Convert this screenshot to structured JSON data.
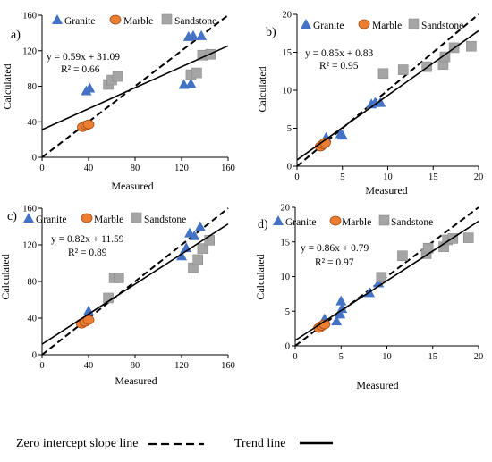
{
  "figure": {
    "caption_zero_intercept": "Zero intercept slope line",
    "caption_trend": "Trend line"
  },
  "legend": [
    "Granite",
    "Marble",
    "Sandstone"
  ],
  "colors": {
    "granite": "#4472c4",
    "marble": "#ed7d31",
    "marble_stroke": "#9c4a14",
    "sandstone": "#a5a5a5",
    "line": "#000000"
  },
  "chart_data": [
    {
      "type": "scatter",
      "panel_label": "a)",
      "xlabel": "Measured",
      "ylabel": "Calculated",
      "xlim": [
        0,
        160
      ],
      "ylim": [
        0,
        160
      ],
      "xticks": [
        0,
        40,
        80,
        120,
        160
      ],
      "yticks": [
        0,
        40,
        80,
        120,
        160
      ],
      "equation": "y = 0.59x + 31.09",
      "r2": "R² = 0.66",
      "trend": {
        "slope": 0.59,
        "intercept": 31.09
      },
      "zero_intercept_line": {
        "slope": 1
      },
      "series": [
        {
          "name": "Granite",
          "points": [
            [
              38,
              75
            ],
            [
              41,
              78
            ],
            [
              122,
              82
            ],
            [
              128,
              83
            ],
            [
              126,
              136
            ],
            [
              130,
              137
            ],
            [
              137,
              137
            ]
          ]
        },
        {
          "name": "Marble",
          "points": [
            [
              35,
              34
            ],
            [
              38,
              36
            ],
            [
              40,
              37
            ]
          ]
        },
        {
          "name": "Sandstone",
          "points": [
            [
              57,
              82
            ],
            [
              60,
              87
            ],
            [
              65,
              91
            ],
            [
              128,
              93
            ],
            [
              133,
              95
            ],
            [
              138,
              115
            ],
            [
              145,
              116
            ]
          ]
        }
      ]
    },
    {
      "type": "scatter",
      "panel_label": "b)",
      "xlabel": "Measured",
      "ylabel": "Calculated",
      "xlim": [
        0,
        20
      ],
      "ylim": [
        0,
        20
      ],
      "xticks": [
        0,
        5,
        10,
        15,
        20
      ],
      "yticks": [
        0,
        5,
        10,
        15,
        20
      ],
      "equation": "y = 0.85x + 0.83",
      "r2": "R² = 0.95",
      "trend": {
        "slope": 0.85,
        "intercept": 0.83
      },
      "zero_intercept_line": {
        "slope": 1
      },
      "series": [
        {
          "name": "Granite",
          "points": [
            [
              3.2,
              3.8
            ],
            [
              4.8,
              4.3
            ],
            [
              5.0,
              4.1
            ],
            [
              8.2,
              8.2
            ],
            [
              8.6,
              8.4
            ],
            [
              9.2,
              8.4
            ]
          ]
        },
        {
          "name": "Marble",
          "points": [
            [
              2.6,
              2.6
            ],
            [
              2.9,
              2.9
            ],
            [
              3.1,
              3.1
            ]
          ]
        },
        {
          "name": "Sandstone",
          "points": [
            [
              9.5,
              12.2
            ],
            [
              11.7,
              12.7
            ],
            [
              14.3,
              13.1
            ],
            [
              16.1,
              13.4
            ],
            [
              16.3,
              14.4
            ],
            [
              17.3,
              15.6
            ],
            [
              19.2,
              15.8
            ]
          ]
        }
      ]
    },
    {
      "type": "scatter",
      "panel_label": "c)",
      "xlabel": "Measured",
      "ylabel": "Calculated",
      "xlim": [
        0,
        160
      ],
      "ylim": [
        0,
        160
      ],
      "xticks": [
        0,
        40,
        80,
        120,
        160
      ],
      "yticks": [
        0,
        40,
        80,
        120,
        160
      ],
      "equation": "y = 0.82x + 11.59",
      "r2": "R² = 0.89",
      "trend": {
        "slope": 0.82,
        "intercept": 11.59
      },
      "zero_intercept_line": {
        "slope": 1
      },
      "series": [
        {
          "name": "Granite",
          "points": [
            [
              40,
              48
            ],
            [
              120,
              108
            ],
            [
              124,
              117
            ],
            [
              127,
              133
            ],
            [
              131,
              130
            ],
            [
              136,
              140
            ]
          ]
        },
        {
          "name": "Marble",
          "points": [
            [
              34,
              34
            ],
            [
              37,
              36
            ],
            [
              40,
              38
            ]
          ]
        },
        {
          "name": "Sandstone",
          "points": [
            [
              57,
              62
            ],
            [
              62,
              84
            ],
            [
              66,
              84
            ],
            [
              130,
              95
            ],
            [
              134,
              104
            ],
            [
              138,
              116
            ],
            [
              144,
              125
            ]
          ]
        }
      ]
    },
    {
      "type": "scatter",
      "panel_label": "d)",
      "xlabel": "Measured",
      "ylabel": "Calculated",
      "xlim": [
        0,
        20
      ],
      "ylim": [
        0,
        20
      ],
      "xticks": [
        0,
        5,
        10,
        15,
        20
      ],
      "yticks": [
        0,
        5,
        10,
        15,
        20
      ],
      "equation": "y = 0.86x + 0.79",
      "r2": "R² = 0.97",
      "trend": {
        "slope": 0.86,
        "intercept": 0.79
      },
      "zero_intercept_line": {
        "slope": 1
      },
      "series": [
        {
          "name": "Granite",
          "points": [
            [
              3.2,
              3.9
            ],
            [
              4.5,
              3.6
            ],
            [
              4.9,
              4.6
            ],
            [
              5.0,
              6.5
            ],
            [
              5.1,
              5.4
            ],
            [
              8.1,
              7.7
            ],
            [
              9.1,
              9.1
            ]
          ]
        },
        {
          "name": "Marble",
          "points": [
            [
              2.6,
              2.6
            ],
            [
              2.9,
              2.9
            ],
            [
              3.2,
              3.1
            ]
          ]
        },
        {
          "name": "Sandstone",
          "points": [
            [
              9.4,
              9.9
            ],
            [
              11.7,
              13.0
            ],
            [
              14.3,
              13.3
            ],
            [
              14.5,
              14.1
            ],
            [
              16.2,
              14.3
            ],
            [
              16.6,
              15.3
            ],
            [
              17.2,
              15.5
            ],
            [
              18.9,
              15.6
            ]
          ]
        }
      ]
    }
  ]
}
